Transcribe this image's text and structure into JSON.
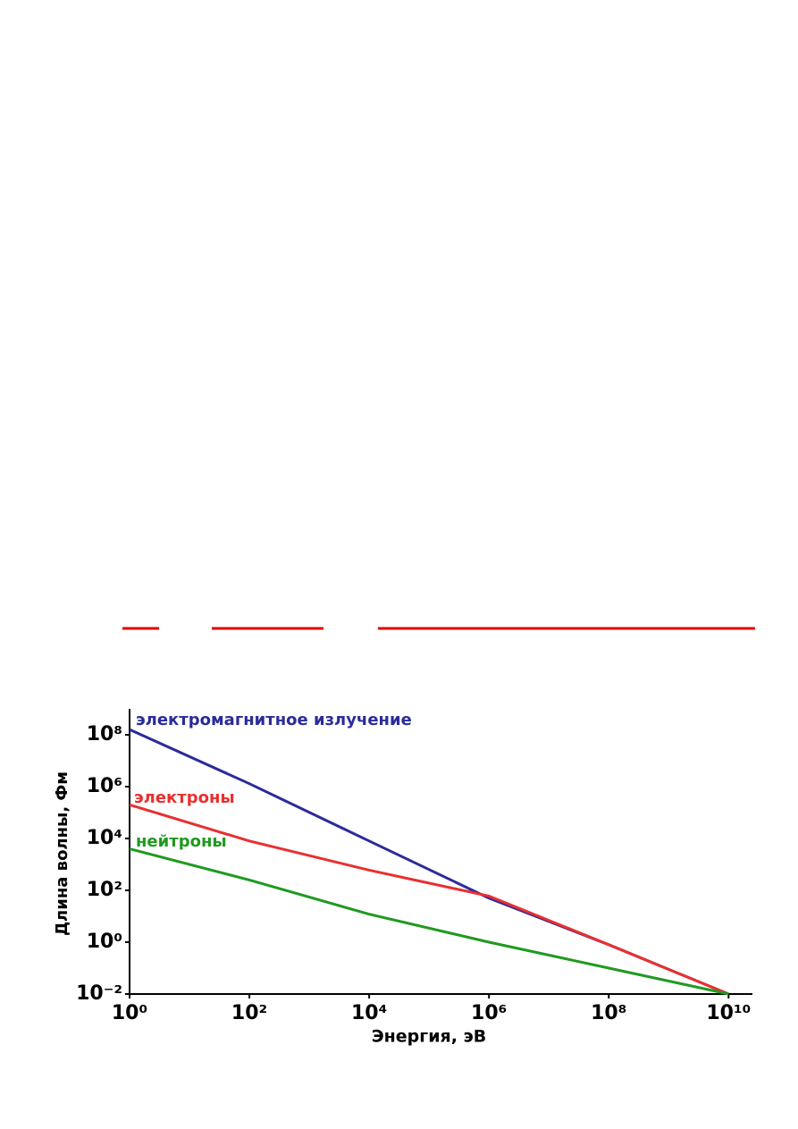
{
  "chart_data": {
    "type": "line",
    "x_label": "Энергия, эВ",
    "y_label": "Длина волны, Фм",
    "log_x": true,
    "log_y": true,
    "xlim": [
      1,
      25000000000
    ],
    "ylim": [
      0.01,
      1000000000
    ],
    "xticks": [
      {
        "value": 1,
        "label": "10⁰"
      },
      {
        "value": 100,
        "label": "10²"
      },
      {
        "value": 10000,
        "label": "10⁴"
      },
      {
        "value": 1000000,
        "label": "10⁶"
      },
      {
        "value": 100000000,
        "label": "10⁸"
      },
      {
        "value": 10000000000,
        "label": "10¹⁰"
      }
    ],
    "yticks": [
      {
        "value": 0.01,
        "label": "10⁻²"
      },
      {
        "value": 1,
        "label": "10⁰"
      },
      {
        "value": 100,
        "label": "10²"
      },
      {
        "value": 10000,
        "label": "10⁴"
      },
      {
        "value": 1000000,
        "label": "10⁶"
      },
      {
        "value": 100000000,
        "label": "10⁸"
      }
    ],
    "x": [
      1,
      100,
      10000,
      1000000,
      100000000,
      10000000000
    ],
    "series": [
      {
        "name": "электромагнитное излучение",
        "color": "#2b2b9a",
        "values": [
          160000000,
          1300000,
          8000,
          50,
          0.8,
          0.01
        ]
      },
      {
        "name": "электроны",
        "color": "#e83030",
        "values": [
          200000,
          8000,
          600,
          60,
          0.8,
          0.01
        ]
      },
      {
        "name": "нейтроны",
        "color": "#1f9a1f",
        "values": [
          4000,
          250,
          12,
          1,
          0.1,
          0.01
        ]
      }
    ]
  }
}
